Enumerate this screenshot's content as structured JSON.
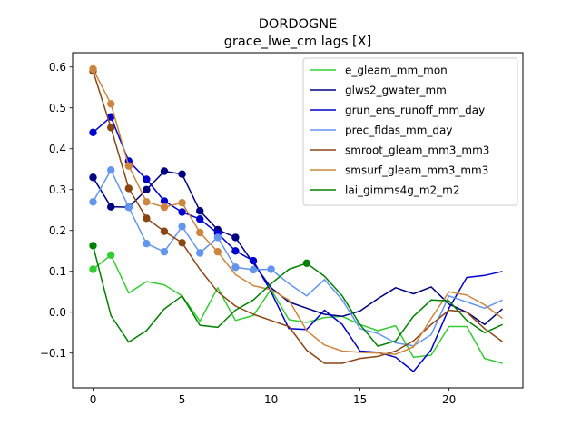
{
  "chart_data": {
    "type": "line",
    "title": "DORDOGNE",
    "subtitle": "grace_lwe_cm lags [X]",
    "xlabel": "",
    "ylabel": "",
    "xlim": [
      -1.15,
      24.15
    ],
    "ylim": [
      -0.185,
      0.635
    ],
    "xticks": [
      0,
      5,
      10,
      15,
      20
    ],
    "yticks": [
      -0.1,
      0.0,
      0.1,
      0.2,
      0.3,
      0.4,
      0.5,
      0.6
    ],
    "ytick_labels": [
      "−0.1",
      "0.0",
      "0.1",
      "0.2",
      "0.3",
      "0.4",
      "0.5",
      "0.6"
    ],
    "grid": false,
    "legend_position": "top-right",
    "x": [
      0,
      1,
      2,
      3,
      4,
      5,
      6,
      7,
      8,
      9,
      10,
      11,
      12,
      13,
      14,
      15,
      16,
      17,
      18,
      19,
      20,
      21,
      22,
      23
    ],
    "series": [
      {
        "name": "e_gleam_mm_mon",
        "color": "#32cd32",
        "values": [
          0.105,
          0.14,
          0.047,
          0.075,
          0.067,
          0.04,
          -0.022,
          0.06,
          -0.02,
          -0.008,
          0.056,
          -0.018,
          -0.025,
          -0.013,
          -0.01,
          -0.03,
          -0.045,
          -0.033,
          -0.11,
          -0.105,
          -0.035,
          -0.035,
          -0.113,
          -0.125
        ],
        "markers": [
          0,
          1
        ]
      },
      {
        "name": "glws2_gwater_mm",
        "color": "#000080",
        "values": [
          0.33,
          0.258,
          0.257,
          0.3,
          0.345,
          0.338,
          0.248,
          0.202,
          0.183,
          0.12,
          0.06,
          0.025,
          0.01,
          -0.005,
          -0.01,
          0.003,
          0.033,
          0.06,
          0.045,
          0.062,
          0.02,
          0.0,
          -0.03,
          0.008
        ],
        "markers": [
          0,
          1,
          2,
          3,
          4,
          5,
          6,
          7,
          8
        ]
      },
      {
        "name": "grun_ens_runoff_mm_day",
        "color": "#0000cd",
        "values": [
          0.44,
          0.478,
          0.37,
          0.325,
          0.272,
          0.245,
          0.228,
          0.193,
          0.15,
          0.126,
          0.05,
          -0.04,
          -0.042,
          0.005,
          -0.03,
          -0.095,
          -0.098,
          -0.11,
          -0.145,
          -0.092,
          0.01,
          0.085,
          0.09,
          0.1
        ],
        "markers": [
          0,
          1,
          2,
          3,
          4,
          5,
          6,
          7,
          8,
          9
        ]
      },
      {
        "name": "prec_fldas_mm_day",
        "color": "#6495ed",
        "values": [
          0.27,
          0.348,
          0.257,
          0.168,
          0.148,
          0.21,
          0.145,
          0.183,
          0.11,
          0.104,
          0.105,
          0.07,
          0.04,
          0.08,
          0.03,
          -0.04,
          -0.052,
          -0.075,
          -0.082,
          -0.055,
          0.04,
          0.025,
          0.01,
          0.03
        ],
        "markers": [
          0,
          1,
          2,
          3,
          4,
          5,
          6,
          7,
          8,
          9,
          10
        ]
      },
      {
        "name": "smroot_gleam_mm3_mm3",
        "color": "#8b4513",
        "values": [
          0.59,
          0.452,
          0.303,
          0.23,
          0.198,
          0.17,
          0.105,
          0.05,
          0.015,
          -0.005,
          -0.02,
          -0.035,
          -0.093,
          -0.125,
          -0.125,
          -0.113,
          -0.108,
          -0.095,
          -0.07,
          -0.03,
          0.005,
          0.0,
          -0.04,
          -0.072
        ],
        "markers": [
          0,
          1,
          2,
          3,
          4,
          5
        ]
      },
      {
        "name": "smsurf_gleam_mm3_mm3",
        "color": "#cd853f",
        "values": [
          0.595,
          0.51,
          0.358,
          0.27,
          0.257,
          0.268,
          0.195,
          0.148,
          0.092,
          0.065,
          0.055,
          0.03,
          -0.045,
          -0.08,
          -0.095,
          -0.098,
          -0.1,
          -0.103,
          -0.085,
          -0.015,
          0.05,
          0.042,
          0.018,
          -0.015
        ],
        "markers": [
          0,
          1,
          2,
          3,
          4,
          5,
          6,
          7
        ]
      },
      {
        "name": "lai_gimms4g_m2_m2",
        "color": "#008000",
        "values": [
          0.163,
          -0.008,
          -0.073,
          -0.045,
          0.008,
          0.04,
          -0.032,
          -0.037,
          0.005,
          0.03,
          0.07,
          0.105,
          0.12,
          0.088,
          0.04,
          -0.03,
          -0.083,
          -0.07,
          -0.01,
          0.03,
          0.028,
          -0.02,
          -0.05,
          -0.03
        ],
        "markers": [
          0,
          12
        ]
      }
    ]
  }
}
